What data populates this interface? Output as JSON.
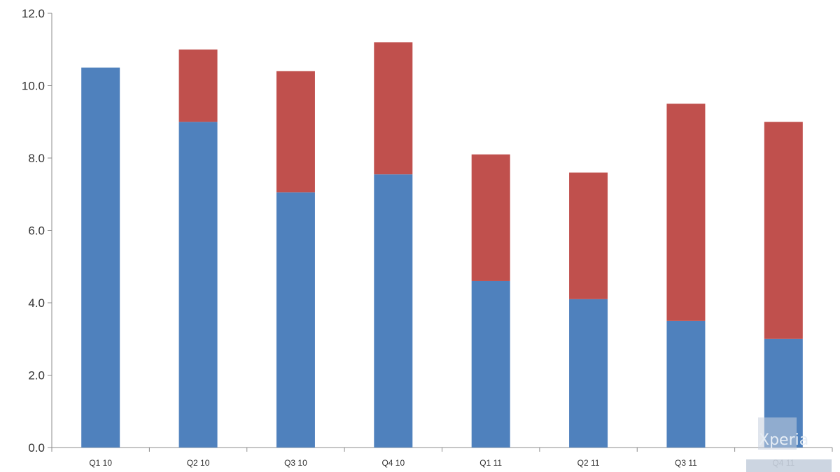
{
  "chart_data": {
    "type": "bar",
    "stacked": true,
    "categories": [
      "Q1 10",
      "Q2 10",
      "Q3 10",
      "Q4 10",
      "Q1 11",
      "Q2 11",
      "Q3 11",
      "Q4 11"
    ],
    "series": [
      {
        "color": "#4f81bd",
        "values": [
          10.5,
          9.0,
          7.05,
          7.55,
          4.6,
          4.1,
          3.5,
          3.0
        ]
      },
      {
        "color": "#c0504d",
        "values": [
          0.0,
          2.0,
          3.35,
          3.65,
          3.5,
          3.5,
          6.0,
          6.0
        ]
      }
    ],
    "ylim": [
      0,
      12
    ],
    "yticks": [
      "0.0",
      "2.0",
      "4.0",
      "6.0",
      "8.0",
      "10.0",
      "12.0"
    ],
    "grid": false,
    "legend": "none"
  },
  "watermark": {
    "text": "Xperia"
  }
}
